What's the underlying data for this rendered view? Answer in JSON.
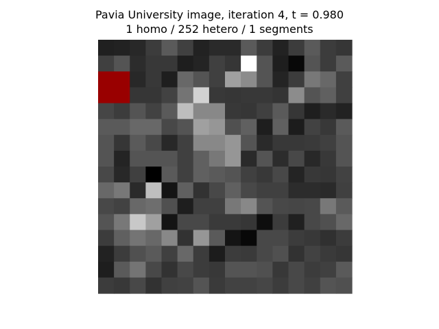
{
  "chart_data": {
    "type": "heatmap",
    "title_line1": "Pavia University image, iteration 4, t = 0.980",
    "title_line2": "1 homo / 252 hetero / 1 segments",
    "axes_visible": false,
    "grid": false,
    "colormap": "grayscale (0 = black, 255 = white)",
    "highlight_color": "#990000",
    "highlight_label": "homo segment",
    "rows": 16,
    "cols": 16,
    "highlight_cells": [
      [
        2,
        0
      ],
      [
        2,
        1
      ],
      [
        3,
        0
      ],
      [
        3,
        1
      ]
    ],
    "values": [
      [
        32,
        34,
        40,
        60,
        90,
        64,
        34,
        42,
        42,
        90,
        60,
        34,
        60,
        90,
        60,
        54
      ],
      [
        64,
        84,
        44,
        56,
        56,
        30,
        36,
        64,
        54,
        255,
        84,
        30,
        8,
        84,
        60,
        90
      ],
      [
        0,
        0,
        40,
        56,
        30,
        104,
        84,
        64,
        160,
        140,
        84,
        36,
        60,
        120,
        104,
        64
      ],
      [
        0,
        0,
        54,
        54,
        66,
        116,
        210,
        56,
        54,
        56,
        56,
        52,
        140,
        84,
        96,
        64
      ],
      [
        70,
        60,
        84,
        66,
        90,
        190,
        136,
        136,
        56,
        54,
        64,
        90,
        54,
        30,
        42,
        34
      ],
      [
        90,
        90,
        104,
        104,
        72,
        84,
        160,
        150,
        80,
        96,
        30,
        96,
        28,
        66,
        56,
        90
      ],
      [
        84,
        54,
        90,
        72,
        40,
        64,
        136,
        136,
        150,
        84,
        42,
        56,
        56,
        58,
        64,
        84
      ],
      [
        84,
        36,
        84,
        84,
        84,
        64,
        96,
        120,
        150,
        42,
        84,
        44,
        72,
        40,
        56,
        84
      ],
      [
        72,
        40,
        64,
        0,
        90,
        64,
        96,
        90,
        84,
        64,
        56,
        72,
        36,
        56,
        54,
        66
      ],
      [
        104,
        120,
        42,
        190,
        20,
        96,
        50,
        72,
        96,
        72,
        64,
        64,
        44,
        44,
        42,
        64
      ],
      [
        72,
        66,
        104,
        110,
        80,
        30,
        64,
        64,
        120,
        136,
        84,
        72,
        70,
        72,
        120,
        90
      ],
      [
        84,
        120,
        200,
        160,
        20,
        72,
        72,
        58,
        58,
        54,
        14,
        60,
        32,
        72,
        80,
        104
      ],
      [
        60,
        96,
        116,
        104,
        136,
        50,
        150,
        90,
        20,
        8,
        72,
        72,
        60,
        56,
        48,
        60
      ],
      [
        34,
        60,
        80,
        90,
        64,
        104,
        60,
        28,
        60,
        58,
        72,
        80,
        50,
        66,
        58,
        54
      ],
      [
        30,
        90,
        116,
        72,
        50,
        72,
        60,
        56,
        84,
        84,
        80,
        56,
        72,
        60,
        64,
        90
      ],
      [
        60,
        56,
        72,
        50,
        64,
        66,
        84,
        58,
        66,
        66,
        70,
        60,
        72,
        64,
        84,
        80
      ]
    ]
  }
}
